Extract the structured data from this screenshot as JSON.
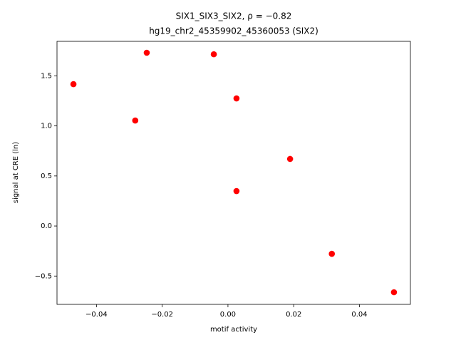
{
  "chart_data": {
    "type": "scatter",
    "title": "SIX1_SIX3_SIX2, ρ = −0.82",
    "subtitle": "hg19_chr2_45359902_45360053 (SIX2)",
    "x_label": "motif activity",
    "y_label": "signal at CRE (ln)",
    "x": [
      -0.047,
      -0.0247,
      -0.0282,
      -0.0043,
      0.0026,
      0.0026,
      0.0189,
      0.0316,
      0.0505
    ],
    "values": [
      1.417,
      1.731,
      1.054,
      1.716,
      1.275,
      0.349,
      0.67,
      -0.278,
      -0.662
    ],
    "color": "#ff0000",
    "xlim": [
      -0.052,
      0.0555
    ],
    "xticks": [
      {
        "value": -0.04,
        "label": "−0.04"
      },
      {
        "value": -0.02,
        "label": "−0.02"
      },
      {
        "value": 0,
        "label": "0.00"
      },
      0.02,
      0.04
    ],
    "ylim": [
      -0.783,
      1.845
    ],
    "yticks": [
      {
        "value": -0.5,
        "label": "−0.5"
      },
      {
        "value": 0,
        "label": "0.0"
      },
      0.5,
      {
        "value": 1,
        "label": "1.0"
      },
      1.5
    ],
    "grid": false
  }
}
